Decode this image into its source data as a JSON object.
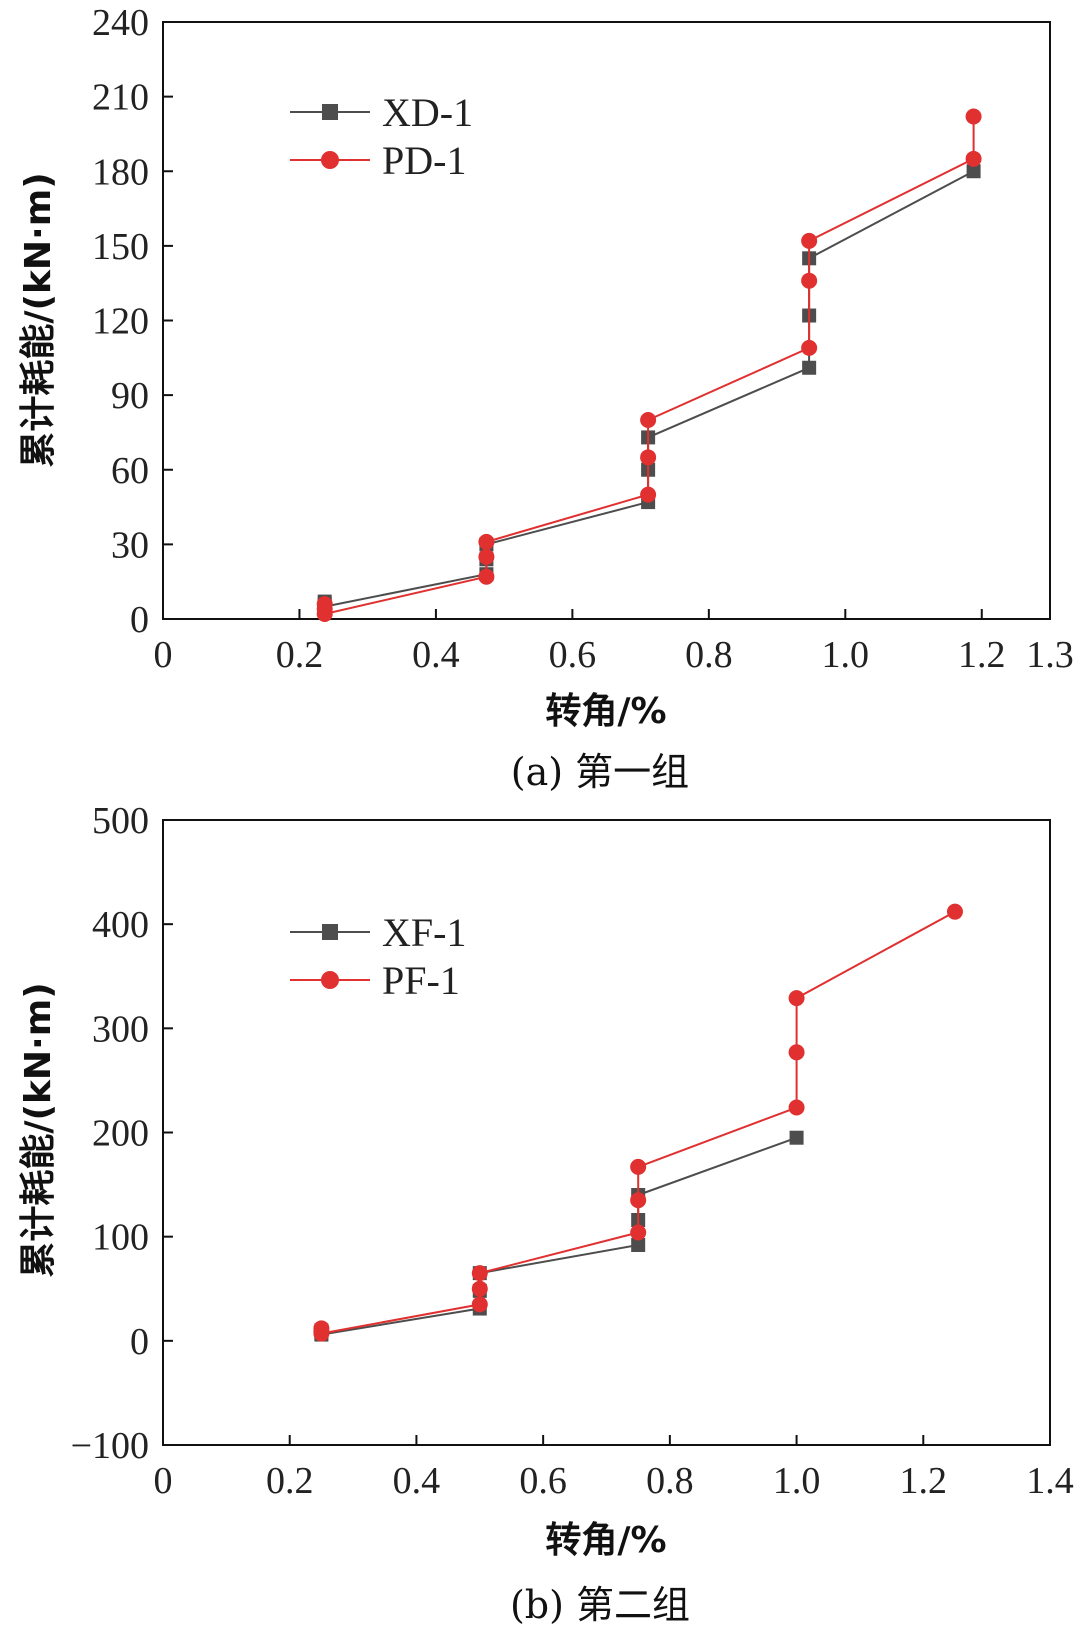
{
  "chart_data": [
    {
      "type": "line",
      "caption": "(a) 第一组",
      "xlabel": "转角/%",
      "ylabel": "累计耗能/(kN·m)",
      "xlim": [
        0,
        1.3
      ],
      "ylim": [
        0,
        240
      ],
      "xticks": [
        0,
        0.2,
        0.4,
        0.6,
        0.8,
        1.0,
        1.2,
        1.3
      ],
      "xtick_labels": [
        "0",
        "0.2",
        "0.4",
        "0.6",
        "0.8",
        "1.0",
        "1.2",
        "1.3"
      ],
      "yticks": [
        0,
        30,
        60,
        90,
        120,
        150,
        180,
        210,
        240
      ],
      "ytick_labels": [
        "0",
        "30",
        "60",
        "90",
        "120",
        "150",
        "180",
        "210",
        "240"
      ],
      "legend_position": "top-left",
      "series": [
        {
          "name": "XD-1",
          "color": "#4d4d4d",
          "marker": "square",
          "x": [
            0.237,
            0.237,
            0.237,
            0.474,
            0.474,
            0.474,
            0.711,
            0.711,
            0.711,
            0.947,
            0.947,
            0.947,
            1.188
          ],
          "y": [
            7,
            6,
            5,
            18,
            24,
            30,
            47,
            60,
            73,
            101,
            122,
            145,
            180
          ]
        },
        {
          "name": "PD-1",
          "color": "#e03030",
          "marker": "circle",
          "x": [
            0.237,
            0.237,
            0.237,
            0.474,
            0.474,
            0.474,
            0.711,
            0.711,
            0.711,
            0.947,
            0.947,
            0.947,
            1.188,
            1.188
          ],
          "y": [
            6,
            4,
            2,
            17,
            25,
            31,
            50,
            65,
            80,
            109,
            136,
            152,
            185,
            202
          ]
        }
      ]
    },
    {
      "type": "line",
      "caption": "(b) 第二组",
      "xlabel": "转角/%",
      "ylabel": "累计耗能/(kN·m)",
      "xlim": [
        0,
        1.4
      ],
      "ylim": [
        -100,
        500
      ],
      "xticks": [
        0,
        0.2,
        0.4,
        0.6,
        0.8,
        1.0,
        1.2,
        1.4
      ],
      "xtick_labels": [
        "0",
        "0.2",
        "0.4",
        "0.6",
        "0.8",
        "1.0",
        "1.2",
        "1.4"
      ],
      "yticks": [
        -100,
        0,
        100,
        200,
        300,
        400,
        500
      ],
      "ytick_labels": [
        "−100",
        "0",
        "100",
        "200",
        "300",
        "400",
        "500"
      ],
      "legend_position": "top-left",
      "series": [
        {
          "name": "XF-1",
          "color": "#4d4d4d",
          "marker": "square",
          "x": [
            0.25,
            0.25,
            0.25,
            0.5,
            0.5,
            0.5,
            0.75,
            0.75,
            0.75,
            1.0
          ],
          "y": [
            10,
            8,
            6,
            31,
            48,
            65,
            92,
            116,
            140,
            195
          ]
        },
        {
          "name": "PF-1",
          "color": "#e03030",
          "marker": "circle",
          "x": [
            0.25,
            0.25,
            0.25,
            0.5,
            0.5,
            0.5,
            0.75,
            0.75,
            0.75,
            1.0,
            1.0,
            1.0,
            1.25
          ],
          "y": [
            12,
            9,
            7,
            35,
            50,
            65,
            104,
            135,
            167,
            224,
            277,
            329,
            412
          ]
        }
      ]
    }
  ]
}
